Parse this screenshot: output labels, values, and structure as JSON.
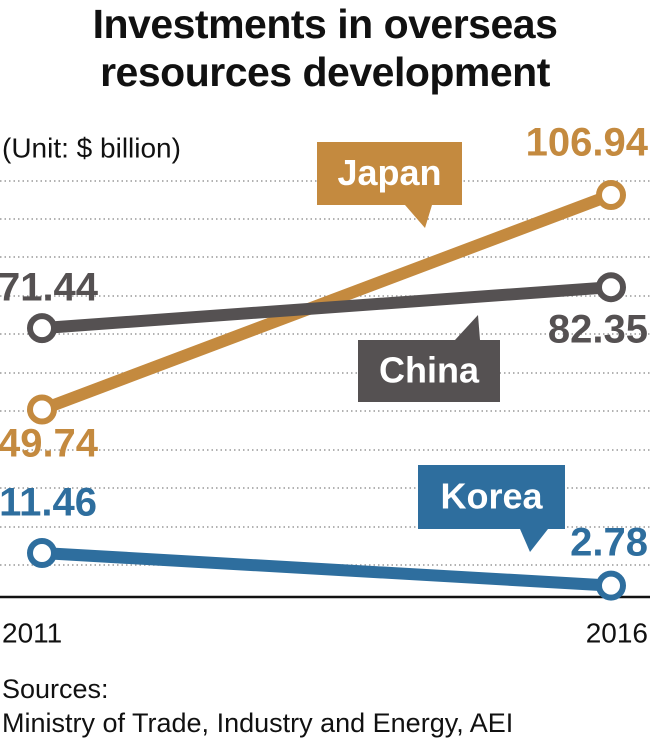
{
  "chart_data": {
    "type": "line",
    "title": "Investments in overseas resources development",
    "subtitle": "(Unit: $ billion)",
    "source": "Sources:\nMinistry of Trade, Industry and Energy, AEI",
    "categories": [
      "2011",
      "2016"
    ],
    "ylim": [
      0,
      110
    ],
    "series": [
      {
        "name": "Japan",
        "color": "#c48a3f",
        "values": [
          49.74,
          106.94
        ]
      },
      {
        "name": "China",
        "color": "#555152",
        "values": [
          71.44,
          82.35
        ]
      },
      {
        "name": "Korea",
        "color": "#2e6e9e",
        "values": [
          11.46,
          2.78
        ]
      }
    ]
  }
}
